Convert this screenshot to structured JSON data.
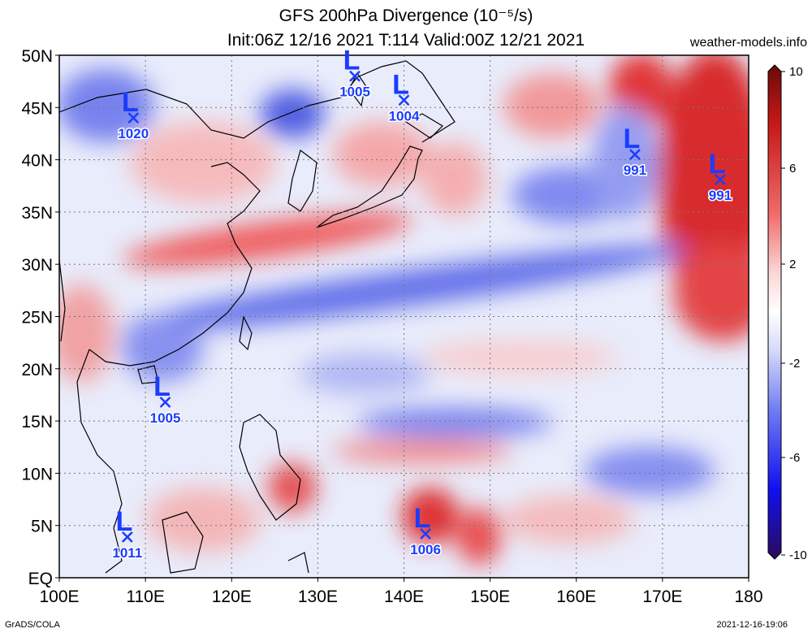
{
  "header": {
    "title": "GFS 200hPa Divergence (10⁻⁵/s)",
    "subtitle": "Init:06Z 12/16 2021 T:114 Valid:00Z 12/21 2021",
    "site": "weather-models.info"
  },
  "footer": {
    "left": "GrADS/COLA",
    "right": "2021-12-16-19:06"
  },
  "map": {
    "lon_range": [
      100,
      180
    ],
    "lat_range": [
      0,
      50
    ],
    "lon_labels": [
      "100E",
      "110E",
      "120E",
      "130E",
      "140E",
      "150E",
      "160E",
      "170E",
      "180"
    ],
    "lat_labels": [
      "50N",
      "45N",
      "40N",
      "35N",
      "30N",
      "25N",
      "20N",
      "15N",
      "10N",
      "5N",
      "EQ"
    ],
    "lows": [
      {
        "lon": 108.6,
        "lat": 44.0,
        "pressure": "1020"
      },
      {
        "lon": 134.3,
        "lat": 48.0,
        "pressure": "1005"
      },
      {
        "lon": 140.0,
        "lat": 45.7,
        "pressure": "1004"
      },
      {
        "lon": 166.8,
        "lat": 40.5,
        "pressure": "991"
      },
      {
        "lon": 176.7,
        "lat": 38.1,
        "pressure": "991"
      },
      {
        "lon": 112.3,
        "lat": 16.8,
        "pressure": "1005"
      },
      {
        "lon": 107.9,
        "lat": 3.9,
        "pressure": "1011"
      },
      {
        "lon": 142.5,
        "lat": 4.2,
        "pressure": "1006"
      }
    ]
  },
  "colorbar": {
    "labels": [
      "10",
      "6",
      "2",
      "-2",
      "-6",
      "-10"
    ],
    "colors": [
      "#3a0a5a",
      "#1a1aff",
      "#6b7cf0",
      "#b9c2f5",
      "#ffffff",
      "#f6b7b7",
      "#ef6060",
      "#d81010",
      "#7a1010"
    ]
  }
}
